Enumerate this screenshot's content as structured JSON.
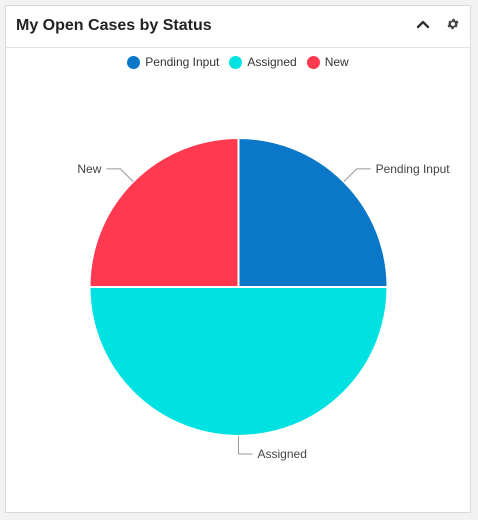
{
  "dashlet": {
    "title": "My Open Cases by Status",
    "collapse_icon": "chevron-up-icon",
    "settings_icon": "gear-icon"
  },
  "chart_data": {
    "type": "pie",
    "categories": [
      "Pending Input",
      "Assigned",
      "New"
    ],
    "values": [
      1,
      2,
      1
    ],
    "colors": [
      "#0a77c9",
      "#00e1e1",
      "#ff3a50"
    ],
    "legend": "top-center",
    "title": ""
  }
}
